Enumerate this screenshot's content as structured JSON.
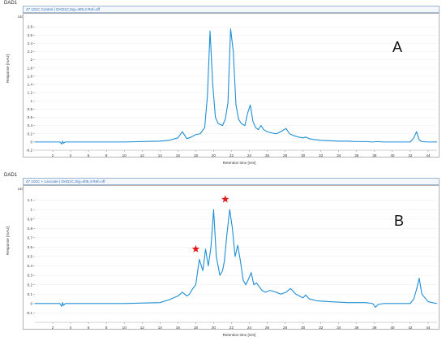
{
  "panels": [
    {
      "id": "A",
      "window_title": "DAD1",
      "trace_label": "47 101C Control | DAD1C,Sig=405,4  Ref=off",
      "panel_label": "A",
      "y_exponent": "x10",
      "y_axis_label": "Response [mAU]",
      "x_axis_label": "Retention time [min]"
    },
    {
      "id": "B",
      "window_title": "DAD1",
      "trace_label": "47 101C + Laccase | DAD1C,Sig=405,4  Ref=off",
      "panel_label": "B",
      "y_exponent": "x10",
      "y_axis_label": "Response [mAU]",
      "x_axis_label": "Retention time [min]"
    }
  ],
  "chart_data": [
    {
      "type": "line",
      "xlabel": "Retention time [min]",
      "ylabel": "Response [mAU]",
      "xlim": [
        0,
        45
      ],
      "ylim": [
        -0.2,
        3.0
      ],
      "x_ticks": [
        2,
        4,
        6,
        8,
        10,
        12,
        14,
        16,
        18,
        20,
        22,
        24,
        26,
        28,
        30,
        32,
        34,
        36,
        38,
        40,
        42,
        44
      ],
      "y_ticks": [
        -0.2,
        0,
        0.2,
        0.4,
        0.6,
        0.8,
        1,
        1.2,
        1.4,
        1.6,
        1.8,
        2,
        2.2,
        2.4,
        2.6,
        2.8
      ],
      "series": [
        {
          "color": "#1f8fd6",
          "x": [
            0,
            2.8,
            3.0,
            3.1,
            3.2,
            3.4,
            5,
            10,
            14,
            15,
            16,
            16.5,
            17,
            17.5,
            18,
            18.5,
            19,
            19.3,
            19.6,
            19.9,
            20.2,
            20.5,
            21,
            21.3,
            21.6,
            21.9,
            22.2,
            22.5,
            22.8,
            23.1,
            23.5,
            23.8,
            24.1,
            24.4,
            24.7,
            25,
            25.3,
            25.6,
            26,
            26.5,
            27,
            27.5,
            28.1,
            28.5,
            29,
            29.5,
            30,
            30.3,
            30.7,
            31.2,
            32,
            33,
            34,
            35,
            36,
            37,
            37.8,
            38.3,
            39,
            40,
            41,
            42,
            42.4,
            42.7,
            43.0,
            43.3,
            44,
            45
          ],
          "y": [
            0.0,
            0.0,
            -0.05,
            0.02,
            -0.03,
            0.0,
            0.0,
            0.0,
            0.02,
            0.04,
            0.1,
            0.25,
            0.08,
            0.12,
            0.18,
            0.2,
            0.35,
            1.1,
            2.7,
            1.4,
            0.6,
            0.45,
            0.4,
            0.55,
            0.95,
            2.75,
            2.2,
            0.9,
            0.55,
            0.45,
            0.4,
            0.7,
            0.9,
            0.5,
            0.35,
            0.3,
            0.4,
            0.3,
            0.25,
            0.22,
            0.2,
            0.25,
            0.33,
            0.2,
            0.15,
            0.12,
            0.1,
            0.12,
            0.08,
            0.06,
            0.04,
            0.03,
            0.02,
            0.02,
            0.01,
            0.01,
            0.0,
            0.01,
            0.0,
            0.0,
            0.0,
            0.0,
            0.1,
            0.25,
            0.05,
            0.01,
            0.0,
            0.0
          ]
        }
      ]
    },
    {
      "type": "line",
      "xlabel": "Retention time [min]",
      "ylabel": "Response [mAU]",
      "xlim": [
        0,
        45
      ],
      "ylim": [
        -0.2,
        1.2
      ],
      "x_ticks": [
        2,
        4,
        6,
        8,
        10,
        12,
        14,
        16,
        18,
        20,
        22,
        24,
        26,
        28,
        30,
        32,
        34,
        36,
        38,
        40,
        42,
        44
      ],
      "y_ticks": [
        -0.1,
        0,
        0.1,
        0.2,
        0.3,
        0.4,
        0.5,
        0.6,
        0.7,
        0.8,
        0.9,
        1,
        1.1
      ],
      "series": [
        {
          "color": "#1f8fd6",
          "x": [
            0,
            2.8,
            3.0,
            3.1,
            3.2,
            3.4,
            5,
            10,
            14,
            15,
            16,
            16.5,
            17,
            17.3,
            17.6,
            18,
            18.4,
            18.8,
            19.1,
            19.4,
            19.7,
            20.0,
            20.3,
            20.7,
            21.0,
            21.2,
            21.5,
            21.8,
            22.1,
            22.4,
            22.7,
            23.0,
            23.3,
            23.6,
            23.9,
            24.2,
            24.5,
            24.8,
            25.1,
            25.4,
            25.8,
            26.3,
            27,
            27.5,
            28.1,
            28.6,
            29.2,
            30,
            30.3,
            30.7,
            31.5,
            33,
            35,
            37,
            37.8,
            38.1,
            38.4,
            39,
            40,
            41,
            42,
            42.4,
            42.7,
            43.0,
            43.3,
            44,
            45
          ],
          "y": [
            0.0,
            0.0,
            -0.03,
            0.01,
            -0.02,
            0.0,
            0.0,
            0.0,
            0.01,
            0.04,
            0.08,
            0.12,
            0.08,
            0.1,
            0.15,
            0.2,
            0.47,
            0.35,
            0.58,
            0.4,
            0.6,
            1.0,
            0.5,
            0.3,
            0.35,
            0.45,
            0.75,
            1.0,
            0.8,
            0.5,
            0.62,
            0.45,
            0.25,
            0.2,
            0.26,
            0.33,
            0.2,
            0.22,
            0.18,
            0.14,
            0.12,
            0.14,
            0.12,
            0.1,
            0.12,
            0.16,
            0.1,
            0.06,
            0.09,
            0.05,
            0.03,
            0.02,
            0.01,
            0.01,
            0.0,
            -0.04,
            -0.01,
            0.0,
            0.0,
            0.0,
            0.0,
            0.05,
            0.15,
            0.27,
            0.1,
            0.02,
            0.0
          ]
        }
      ],
      "annotations": [
        {
          "marker": "star",
          "color": "#e11919",
          "x": 18.0,
          "y": 0.58
        },
        {
          "marker": "star",
          "color": "#e11919",
          "x": 21.3,
          "y": 1.11
        }
      ]
    }
  ]
}
